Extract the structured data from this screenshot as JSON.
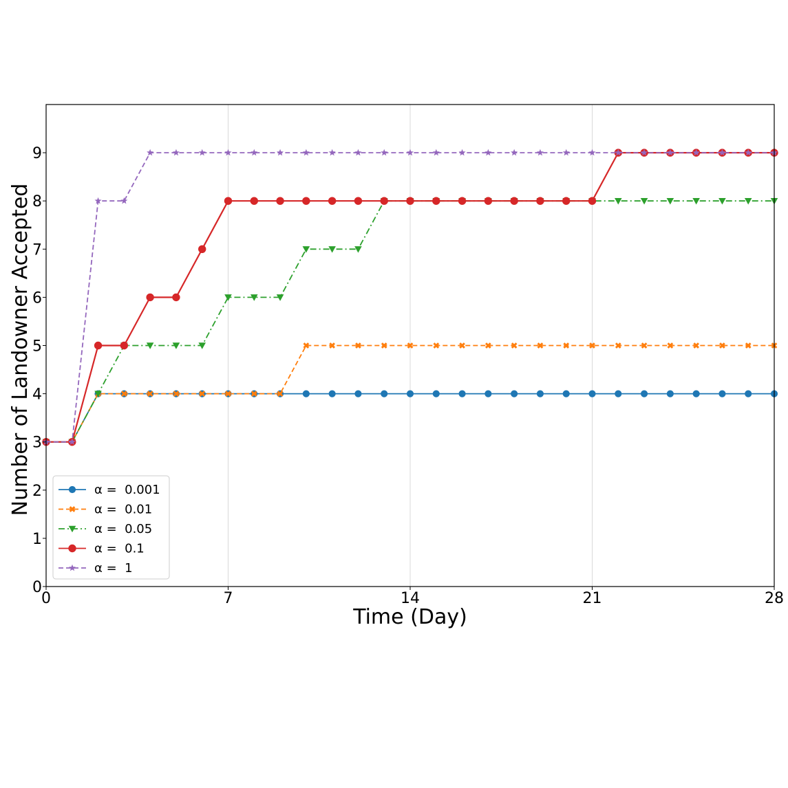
{
  "chart_data": {
    "type": "line",
    "xlabel": "Time (Day)",
    "ylabel": "Number of Landowner Accepted",
    "xlim": [
      0,
      28
    ],
    "ylim": [
      0,
      10
    ],
    "xticks": [
      0,
      7,
      14,
      21,
      28
    ],
    "yticks": [
      0,
      1,
      2,
      3,
      4,
      5,
      6,
      7,
      8,
      9
    ],
    "grid": "vertical",
    "legend_position": "lower-left",
    "x": [
      0,
      1,
      2,
      3,
      4,
      5,
      6,
      7,
      8,
      9,
      10,
      11,
      12,
      13,
      14,
      15,
      16,
      17,
      18,
      19,
      20,
      21,
      22,
      23,
      24,
      25,
      26,
      27,
      28
    ],
    "series": [
      {
        "name": "α =  0.001",
        "color": "#1f77b4",
        "line_style": "solid",
        "marker": "circle",
        "values": [
          3,
          3,
          4,
          4,
          4,
          4,
          4,
          4,
          4,
          4,
          4,
          4,
          4,
          4,
          4,
          4,
          4,
          4,
          4,
          4,
          4,
          4,
          4,
          4,
          4,
          4,
          4,
          4,
          4
        ]
      },
      {
        "name": "α =  0.01",
        "color": "#ff7f0e",
        "line_style": "dashed",
        "marker": "x",
        "values": [
          3,
          3,
          4,
          4,
          4,
          4,
          4,
          4,
          4,
          4,
          5,
          5,
          5,
          5,
          5,
          5,
          5,
          5,
          5,
          5,
          5,
          5,
          5,
          5,
          5,
          5,
          5,
          5,
          5
        ]
      },
      {
        "name": "α =  0.05",
        "color": "#2ca02c",
        "line_style": "dashdot",
        "marker": "triangle-down",
        "values": [
          3,
          3,
          4,
          5,
          5,
          5,
          5,
          6,
          6,
          6,
          7,
          7,
          7,
          8,
          8,
          8,
          8,
          8,
          8,
          8,
          8,
          8,
          8,
          8,
          8,
          8,
          8,
          8,
          8
        ]
      },
      {
        "name": "α =  0.1",
        "color": "#d62728",
        "line_style": "solid",
        "marker": "circle",
        "values": [
          3,
          3,
          5,
          5,
          6,
          6,
          7,
          8,
          8,
          8,
          8,
          8,
          8,
          8,
          8,
          8,
          8,
          8,
          8,
          8,
          8,
          8,
          9,
          9,
          9,
          9,
          9,
          9,
          9
        ]
      },
      {
        "name": "α =  1",
        "color": "#9467bd",
        "line_style": "dashed",
        "marker": "star",
        "values": [
          3,
          3,
          8,
          8,
          9,
          9,
          9,
          9,
          9,
          9,
          9,
          9,
          9,
          9,
          9,
          9,
          9,
          9,
          9,
          9,
          9,
          9,
          9,
          9,
          9,
          9,
          9,
          9,
          9
        ]
      }
    ]
  }
}
